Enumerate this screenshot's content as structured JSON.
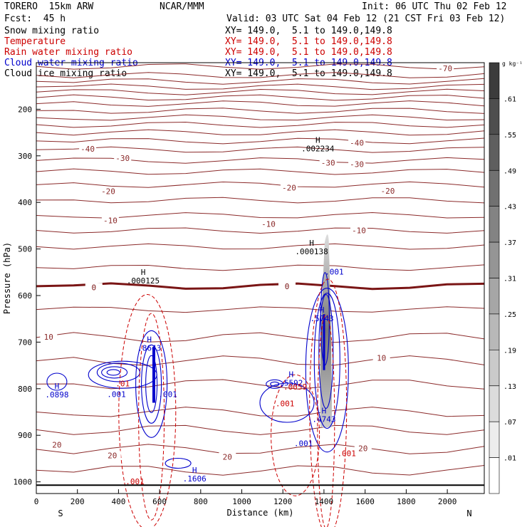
{
  "header": {
    "model": "TORERO  15km ARW",
    "org": "NCAR/MMM",
    "init": "Init: 06 UTC Thu 02 Feb 12",
    "fcst": "Fcst:  45 h",
    "valid": "Valid: 03 UTC Sat 04 Feb 12 (21 CST Fri 03 Feb 12)"
  },
  "fields": [
    {
      "label": "Snow mixing ratio",
      "color": "#000000",
      "xy": "XY= 149.0,  5.1 to 149.0,149.8"
    },
    {
      "label": "Temperature",
      "color": "#cc0000",
      "xy": "XY= 149.0,  5.1 to 149.0,149.8"
    },
    {
      "label": "Rain water mixing ratio",
      "color": "#cc0000",
      "xy": "XY= 149.0,  5.1 to 149.0,149.8"
    },
    {
      "label": "Cloud water mixing ratio",
      "color": "#0000cc",
      "xy": "XY= 149.0,  5.1 to 149.0,149.8"
    },
    {
      "label": "Cloud ice mixing ratio",
      "color": "#000000",
      "xy": "XY= 149.0,  5.1 to 149.0,149.8"
    }
  ],
  "chart_data": {
    "type": "contour",
    "xlabel": "Distance (km)",
    "ylabel": "Pressure (hPa)",
    "xlim": [
      0,
      2180
    ],
    "ylim": [
      1025,
      100
    ],
    "xticks": [
      0,
      200,
      400,
      600,
      800,
      1000,
      1200,
      1400,
      1600,
      1800,
      2000
    ],
    "yticks": [
      200,
      300,
      400,
      500,
      600,
      700,
      800,
      900,
      1000
    ],
    "direction_left": "S",
    "direction_right": "N",
    "colorbar": {
      "unit": "g kg⁻¹",
      "ticks": [
        ".61",
        ".55",
        ".49",
        ".43",
        ".37",
        ".31",
        ".25",
        ".19",
        ".13",
        ".07",
        ".01"
      ]
    },
    "temperature_contours": [
      {
        "label": "-70",
        "x": 1990,
        "p": 112
      },
      {
        "label": "-40",
        "x": 250,
        "p": 285
      },
      {
        "label": "-40",
        "x": 1560,
        "p": 272
      },
      {
        "label": "-30",
        "x": 420,
        "p": 305
      },
      {
        "label": "-30",
        "x": 1420,
        "p": 315
      },
      {
        "label": "-30",
        "x": 1560,
        "p": 318
      },
      {
        "label": "-20",
        "x": 350,
        "p": 376
      },
      {
        "label": "-20",
        "x": 1230,
        "p": 368
      },
      {
        "label": "-20",
        "x": 1710,
        "p": 375
      },
      {
        "label": "-10",
        "x": 360,
        "p": 439
      },
      {
        "label": "-10",
        "x": 1130,
        "p": 446
      },
      {
        "label": "-10",
        "x": 1570,
        "p": 460
      },
      {
        "label": "0",
        "x": 280,
        "p": 582
      },
      {
        "label": "0",
        "x": 1220,
        "p": 580
      },
      {
        "label": "10",
        "x": 60,
        "p": 689
      },
      {
        "label": "10",
        "x": 1680,
        "p": 734
      },
      {
        "label": "20",
        "x": 100,
        "p": 920
      },
      {
        "label": "20",
        "x": 370,
        "p": 943
      },
      {
        "label": "20",
        "x": 930,
        "p": 946
      },
      {
        "label": "20",
        "x": 1590,
        "p": 928
      }
    ],
    "maxima_labels": [
      {
        "mark": "H",
        "value": ".002234",
        "x": 1370,
        "p": 272,
        "color": "#000000"
      },
      {
        "mark": "H",
        "value": ".000138",
        "x": 1340,
        "p": 493,
        "color": "#000000"
      },
      {
        "mark": "H",
        "value": ".000125",
        "x": 520,
        "p": 556,
        "color": "#000000"
      },
      {
        "mark": "H",
        "value": ".8643",
        "x": 550,
        "p": 700,
        "color": "#0000cc"
      },
      {
        "mark": "H",
        "value": ".5743",
        "x": 1390,
        "p": 637,
        "color": "#0000cc"
      },
      {
        "mark": "H",
        "value": ".5592",
        "x": 1240,
        "p": 775,
        "color": "#0000cc"
      },
      {
        "mark": "H",
        "value": ".4743",
        "x": 1400,
        "p": 853,
        "color": "#0000cc"
      },
      {
        "mark": "H",
        "value": ".1606",
        "x": 770,
        "p": 981,
        "color": "#0000cc"
      },
      {
        "mark": "H",
        "value": ".0898",
        "x": 100,
        "p": 800,
        "color": "#0000cc"
      }
    ],
    "small_labels": [
      {
        "text": ".001",
        "x": 1450,
        "p": 555,
        "color": "#0000cc"
      },
      {
        "text": ".01",
        "x": 420,
        "p": 795,
        "color": "#cc0000"
      },
      {
        "text": ".001",
        "x": 390,
        "p": 818,
        "color": "#0000cc"
      },
      {
        "text": ".001",
        "x": 640,
        "p": 818,
        "color": "#0000cc"
      },
      {
        "text": ".0059",
        "x": 1260,
        "p": 802,
        "color": "#cc0000"
      },
      {
        "text": ".001",
        "x": 1210,
        "p": 838,
        "color": "#cc0000"
      },
      {
        "text": ".001",
        "x": 1300,
        "p": 923,
        "color": "#0000cc"
      },
      {
        "text": ".001",
        "x": 1510,
        "p": 945,
        "color": "#cc0000"
      },
      {
        "text": ".001",
        "x": 480,
        "p": 1005,
        "color": "#cc0000"
      }
    ]
  }
}
